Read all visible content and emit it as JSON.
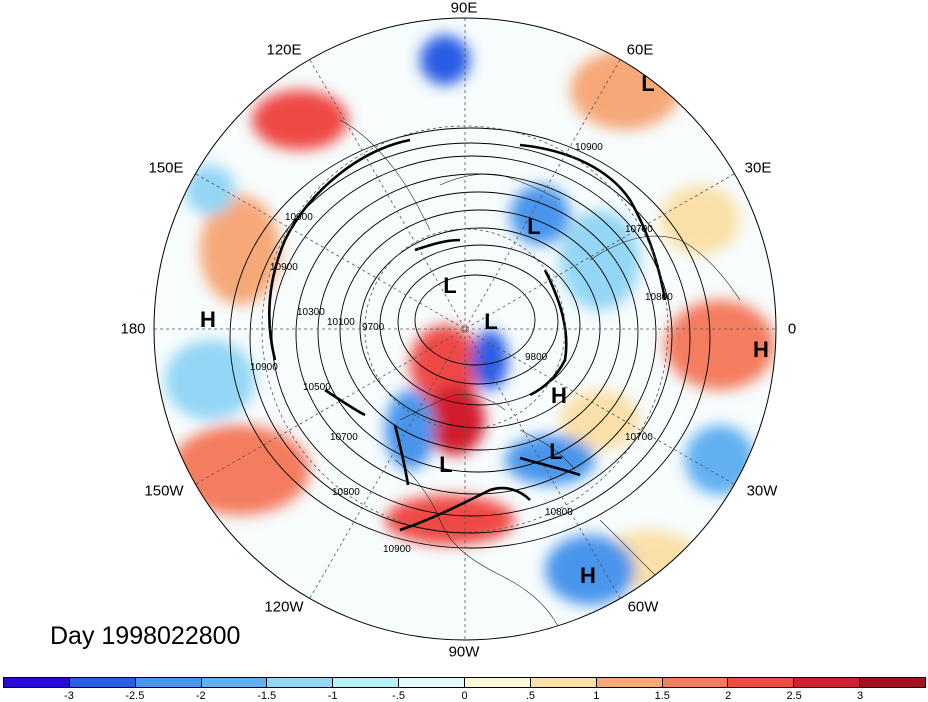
{
  "title": "Day 1998022800",
  "longitude_labels": {
    "lon_90E": "90E",
    "lon_60E": "60E",
    "lon_120E": "120E",
    "lon_30E": "30E",
    "lon_150E": "150E",
    "lon_180": "180",
    "lon_0": "0",
    "lon_150W": "150W",
    "lon_30W": "30W",
    "lon_120W": "120W",
    "lon_60W": "60W",
    "lon_90W": "90W"
  },
  "pressure_centers": [
    {
      "type": "L"
    },
    {
      "type": "H"
    },
    {
      "type": "L"
    },
    {
      "type": "L"
    },
    {
      "type": "L"
    },
    {
      "type": "H"
    },
    {
      "type": "H"
    },
    {
      "type": "L"
    },
    {
      "type": "L"
    },
    {
      "type": "H"
    }
  ],
  "contour_labels": [
    "10900",
    "10900",
    "10700",
    "10900",
    "10800",
    "10500",
    "10700",
    "10800",
    "10900",
    "9700",
    "10100",
    "10300",
    "10900",
    "9800",
    "10800",
    "10700"
  ],
  "colorbar": {
    "colors": [
      "#2a0ad6",
      "#2a5de6",
      "#4a95ec",
      "#62b0f0",
      "#93d6f5",
      "#b8f0f8",
      "#e4fbff",
      "#fdf8d8",
      "#fae0a8",
      "#f6a878",
      "#f47c5e",
      "#ef4a44",
      "#d21f2f",
      "#a3101f"
    ],
    "ticks": [
      "-3",
      "-2.5",
      "-2",
      "-1.5",
      "-1",
      "-.5",
      "0",
      ".5",
      "1",
      "1.5",
      "2",
      "2.5",
      "3"
    ]
  }
}
